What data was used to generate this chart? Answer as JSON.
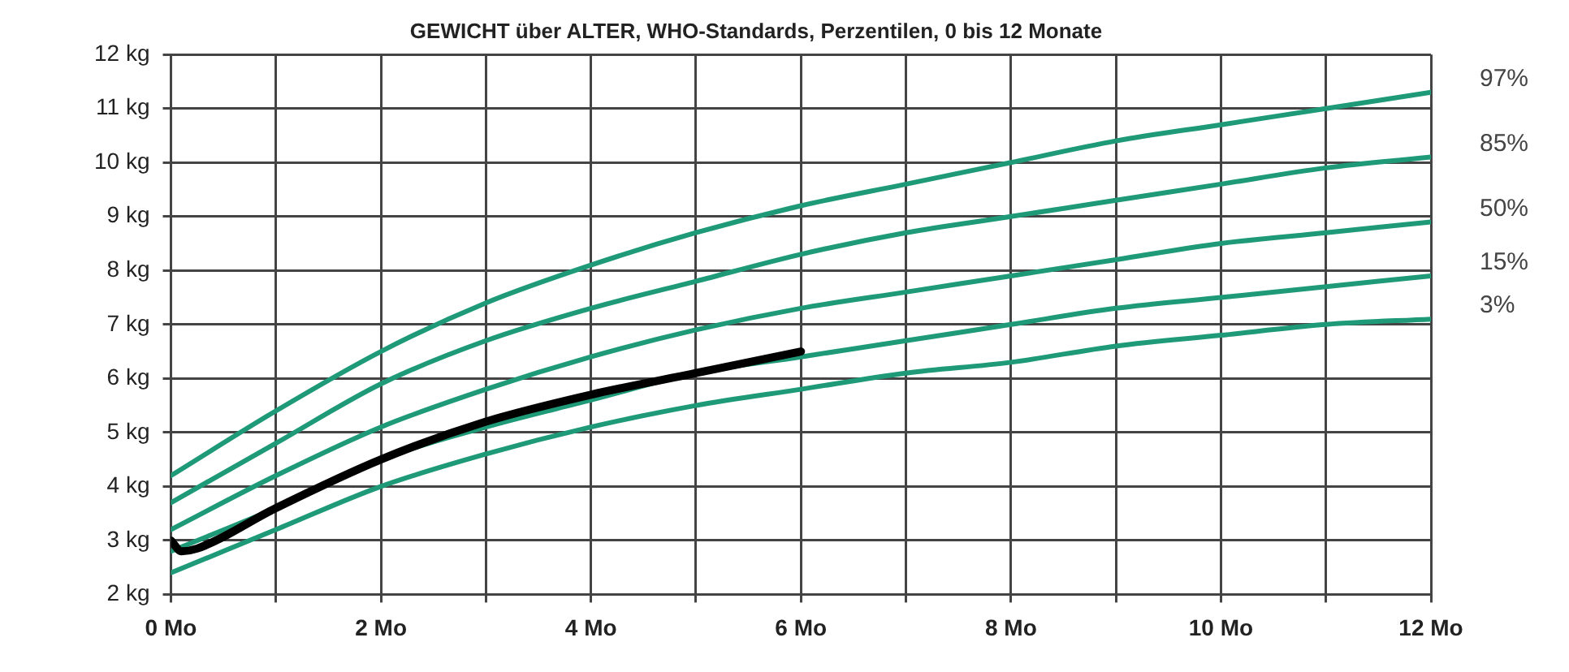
{
  "chart_data": {
    "type": "line",
    "title": "GEWICHT über ALTER, WHO-Standards, Perzentilen, 0 bis 12 Monate",
    "xlim": [
      0,
      12
    ],
    "ylim": [
      2,
      12
    ],
    "xticks": [
      {
        "value": 0,
        "label": "0 Mo"
      },
      {
        "value": 1,
        "label": null
      },
      {
        "value": 2,
        "label": "2 Mo"
      },
      {
        "value": 3,
        "label": null
      },
      {
        "value": 4,
        "label": "4 Mo"
      },
      {
        "value": 5,
        "label": null
      },
      {
        "value": 6,
        "label": "6 Mo"
      },
      {
        "value": 7,
        "label": null
      },
      {
        "value": 8,
        "label": "8 Mo"
      },
      {
        "value": 9,
        "label": null
      },
      {
        "value": 10,
        "label": "10 Mo"
      },
      {
        "value": 11,
        "label": null
      },
      {
        "value": 12,
        "label": "12 Mo"
      }
    ],
    "yticks": [
      {
        "value": 2,
        "label": "2 kg"
      },
      {
        "value": 3,
        "label": "3 kg"
      },
      {
        "value": 4,
        "label": "4 kg"
      },
      {
        "value": 5,
        "label": "5 kg"
      },
      {
        "value": 6,
        "label": "6 kg"
      },
      {
        "value": 7,
        "label": "7 kg"
      },
      {
        "value": 8,
        "label": "8 kg"
      },
      {
        "value": 9,
        "label": "9 kg"
      },
      {
        "value": 10,
        "label": "10 kg"
      },
      {
        "value": 11,
        "label": "11 kg"
      },
      {
        "value": 12,
        "label": "12 kg"
      }
    ],
    "grid": true,
    "legend": false,
    "marker": "none",
    "line_style": "solid",
    "series": [
      {
        "name": "97%",
        "color": "#1f9a78",
        "x": [
          0,
          1,
          2,
          3,
          4,
          5,
          6,
          7,
          8,
          9,
          10,
          11,
          12
        ],
        "values": [
          4.2,
          5.4,
          6.5,
          7.4,
          8.1,
          8.7,
          9.2,
          9.6,
          10.0,
          10.4,
          10.7,
          11.0,
          11.3
        ]
      },
      {
        "name": "85%",
        "color": "#1f9a78",
        "x": [
          0,
          1,
          2,
          3,
          4,
          5,
          6,
          7,
          8,
          9,
          10,
          11,
          12
        ],
        "values": [
          3.7,
          4.8,
          5.9,
          6.7,
          7.3,
          7.8,
          8.3,
          8.7,
          9.0,
          9.3,
          9.6,
          9.9,
          10.1
        ]
      },
      {
        "name": "50%",
        "color": "#1f9a78",
        "x": [
          0,
          1,
          2,
          3,
          4,
          5,
          6,
          7,
          8,
          9,
          10,
          11,
          12
        ],
        "values": [
          3.2,
          4.2,
          5.1,
          5.8,
          6.4,
          6.9,
          7.3,
          7.6,
          7.9,
          8.2,
          8.5,
          8.7,
          8.9
        ]
      },
      {
        "name": "15%",
        "color": "#1f9a78",
        "x": [
          0,
          1,
          2,
          3,
          4,
          5,
          6,
          7,
          8,
          9,
          10,
          11,
          12
        ],
        "values": [
          2.8,
          3.6,
          4.5,
          5.1,
          5.6,
          6.1,
          6.4,
          6.7,
          7.0,
          7.3,
          7.5,
          7.7,
          7.9
        ]
      },
      {
        "name": "3%",
        "color": "#1f9a78",
        "x": [
          0,
          1,
          2,
          3,
          4,
          5,
          6,
          7,
          8,
          9,
          10,
          11,
          12
        ],
        "values": [
          2.4,
          3.2,
          4.0,
          4.6,
          5.1,
          5.5,
          5.8,
          6.1,
          6.3,
          6.6,
          6.8,
          7.0,
          7.1
        ]
      },
      {
        "color": "#000000",
        "x": [
          0,
          0.1,
          0.25,
          1,
          2,
          3,
          4,
          5,
          6
        ],
        "values": [
          3.0,
          2.8,
          2.85,
          3.6,
          4.5,
          5.2,
          5.7,
          6.1,
          6.5
        ]
      }
    ]
  }
}
